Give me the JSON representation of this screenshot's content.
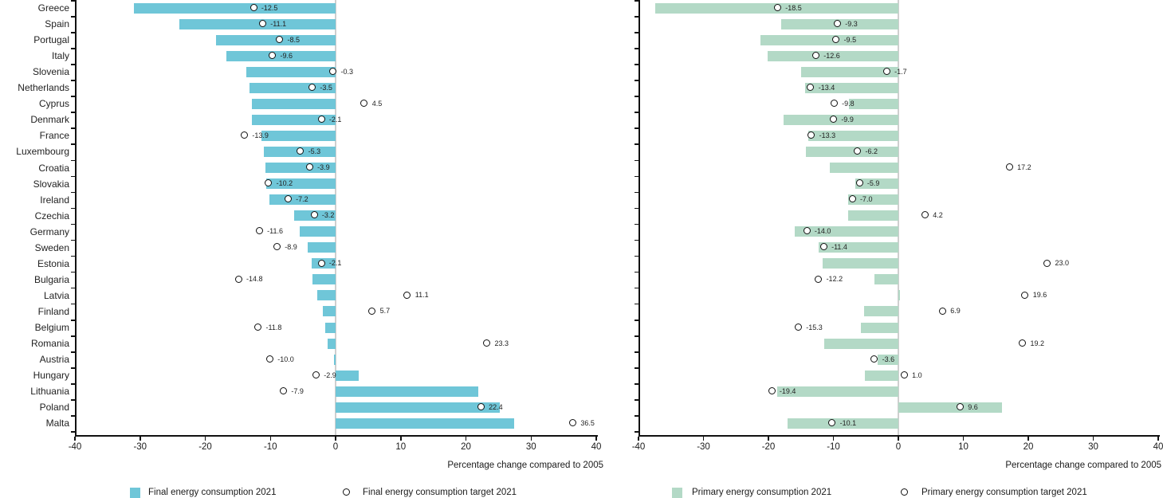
{
  "page": {
    "background": "#ffffff"
  },
  "chart_data": [
    {
      "type": "bar",
      "orientation": "horizontal",
      "xlabel": "Percentage change compared to 2005",
      "xlim": [
        -40,
        40
      ],
      "xticks": [
        -40,
        -30,
        -20,
        -10,
        0,
        10,
        20,
        30,
        40
      ],
      "grid": false,
      "legend_position": "bottom",
      "category_labels_visible": true,
      "categories": [
        "Greece",
        "Spain",
        "Portugal",
        "Italy",
        "Slovenia",
        "Netherlands",
        "Cyprus",
        "Denmark",
        "France",
        "Luxembourg",
        "Croatia",
        "Slovakia",
        "Ireland",
        "Czechia",
        "Germany",
        "Sweden",
        "Estonia",
        "Bulgaria",
        "Latvia",
        "Finland",
        "Belgium",
        "Romania",
        "Austria",
        "Hungary",
        "Lithuania",
        "Poland",
        "Malta"
      ],
      "series": [
        {
          "name": "Final energy consumption 2021",
          "render": "bar",
          "color": "#6fc6d8",
          "values": [
            -31.0,
            -24.0,
            -18.3,
            -16.7,
            -13.7,
            -13.2,
            -12.8,
            -12.8,
            -11.4,
            -11.0,
            -10.8,
            -10.6,
            -10.1,
            -6.4,
            -5.5,
            -4.3,
            -3.7,
            -3.5,
            -2.8,
            -2.0,
            -1.6,
            -1.2,
            -0.2,
            3.6,
            21.9,
            25.2,
            27.4
          ]
        },
        {
          "name": "Final energy consumption target 2021",
          "render": "point",
          "marker": "open-circle",
          "marker_fill": "#ffffff",
          "marker_stroke": "#111111",
          "labels_visible": true,
          "values": [
            -12.5,
            -11.1,
            -8.5,
            -9.6,
            -0.3,
            -3.5,
            4.5,
            -2.1,
            -13.9,
            -5.3,
            -3.9,
            -10.2,
            -7.2,
            -3.2,
            -11.6,
            -8.9,
            -2.1,
            -14.8,
            11.1,
            5.7,
            -11.8,
            23.3,
            -10.0,
            -2.9,
            -7.9,
            22.4,
            36.5
          ]
        }
      ]
    },
    {
      "type": "bar",
      "orientation": "horizontal",
      "xlabel": "Percentage change compared to 2005",
      "xlim": [
        -40,
        40
      ],
      "xticks": [
        -40,
        -30,
        -20,
        -10,
        0,
        10,
        20,
        30,
        40
      ],
      "grid": false,
      "legend_position": "bottom",
      "category_labels_visible": false,
      "categories": [
        "Greece",
        "Spain",
        "Portugal",
        "Italy",
        "Slovenia",
        "Netherlands",
        "Cyprus",
        "Denmark",
        "France",
        "Luxembourg",
        "Croatia",
        "Slovakia",
        "Ireland",
        "Czechia",
        "Germany",
        "Sweden",
        "Estonia",
        "Bulgaria",
        "Latvia",
        "Finland",
        "Belgium",
        "Romania",
        "Austria",
        "Hungary",
        "Lithuania",
        "Poland",
        "Malta"
      ],
      "series": [
        {
          "name": "Primary energy consumption 2021",
          "render": "bar",
          "color": "#b3d9c6",
          "values": [
            -37.4,
            -18.0,
            -21.2,
            -20.1,
            -15.0,
            -14.3,
            -7.6,
            -17.7,
            -13.9,
            -14.2,
            -10.5,
            -6.6,
            -7.7,
            -7.7,
            -15.9,
            -12.3,
            -11.6,
            -3.7,
            0.2,
            -5.3,
            -5.8,
            -11.4,
            -3.2,
            -5.2,
            -18.7,
            15.9,
            -17.0
          ]
        },
        {
          "name": "Primary energy consumption target 2021",
          "render": "point",
          "marker": "open-circle",
          "marker_fill": "#ffffff",
          "marker_stroke": "#111111",
          "labels_visible": true,
          "values": [
            -18.5,
            -9.3,
            -9.5,
            -12.6,
            -1.7,
            -13.4,
            -9.8,
            -9.9,
            -13.3,
            -6.2,
            17.2,
            -5.9,
            -7.0,
            4.2,
            -14.0,
            -11.4,
            23.0,
            -12.2,
            19.6,
            6.9,
            -15.3,
            19.2,
            -3.6,
            1.0,
            -19.4,
            9.6,
            -10.1
          ]
        }
      ]
    }
  ],
  "colors": {
    "final_bar": "#6fc6d8",
    "primary_bar": "#b3d9c6",
    "marker_stroke": "#111111",
    "zero_line": "#cfcfcf",
    "axis": "#111111",
    "text": "#1a1a1a"
  }
}
